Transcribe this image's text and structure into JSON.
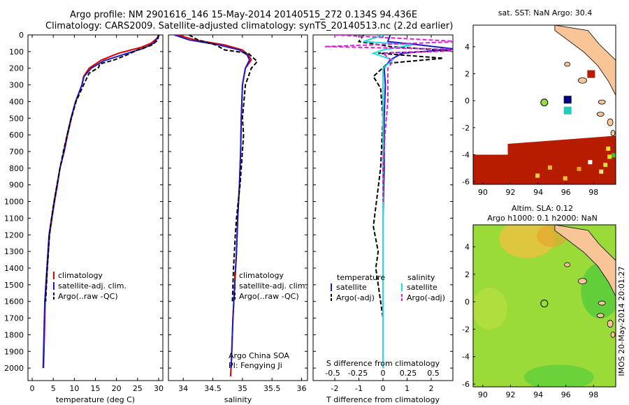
{
  "header": {
    "line1": "Argo profile: NM 2901616_146 15-May-2014 20140515_272 0.134S 94.436E",
    "line2": "Climatology: CARS2009. Satellite-adjusted climatology: synTS_20140513.nc (2.2d earlier)"
  },
  "colors": {
    "climatology": "#e00000",
    "satellite": "#1a1acc",
    "argo": "#000000",
    "salinity_sat": "#22dddd",
    "salinity_argo": "#dd22dd",
    "land": "#f9c596",
    "sst_fill": "#b81c00",
    "sla_fill": "#9adb3a"
  },
  "chart_data": [
    {
      "id": "temperature",
      "type": "line",
      "xlabel": "temperature (deg C)",
      "ylabel": "",
      "xlim": [
        -1,
        31
      ],
      "ylim": [
        2075,
        0
      ],
      "xticks": [
        0,
        5,
        10,
        15,
        20,
        25,
        30
      ],
      "yticks": [
        0,
        100,
        200,
        300,
        400,
        500,
        600,
        700,
        800,
        900,
        1000,
        1100,
        1200,
        1300,
        1400,
        1500,
        1600,
        1700,
        1800,
        1900,
        2000
      ],
      "legend": [
        "climatology",
        "satellite-adj. clim.",
        "Argo(..raw -QC)"
      ],
      "series": [
        {
          "name": "climatology",
          "x": [
            30.0,
            29.6,
            28.2,
            25.8,
            20.5,
            16.5,
            13.5,
            12.2,
            11.8,
            10.3,
            9.3,
            8.4,
            7.6,
            6.6,
            6.0,
            5.3,
            4.7,
            4.1,
            3.6,
            3.1,
            2.9,
            2.7
          ],
          "y": [
            0,
            20,
            50,
            75,
            110,
            150,
            200,
            250,
            300,
            400,
            500,
            600,
            700,
            800,
            900,
            1000,
            1100,
            1200,
            1400,
            1600,
            1800,
            2000
          ]
        },
        {
          "name": "satellite-adj. clim.",
          "x": [
            30.1,
            29.7,
            28.8,
            26.5,
            22.0,
            17.0,
            14.0,
            12.3,
            11.8,
            10.3,
            9.2,
            8.3,
            7.5,
            6.6,
            5.9,
            5.2,
            4.6,
            4.0,
            3.5,
            3.0,
            2.8,
            2.6
          ],
          "y": [
            0,
            20,
            50,
            80,
            115,
            155,
            200,
            250,
            300,
            400,
            500,
            600,
            700,
            800,
            900,
            1000,
            1100,
            1200,
            1400,
            1600,
            1800,
            2000
          ]
        },
        {
          "name": "Argo(..raw -QC)",
          "x": [
            30.0,
            29.8,
            28.5,
            25.0,
            22.5,
            19.5,
            16.0,
            15.8,
            13.5,
            12.2,
            10.4,
            9.3,
            8.3,
            7.4,
            6.6,
            5.9,
            5.2,
            4.6,
            4.1,
            3.6,
            3.2
          ],
          "y": [
            0,
            30,
            60,
            90,
            120,
            150,
            175,
            195,
            230,
            300,
            400,
            500,
            600,
            700,
            800,
            900,
            1000,
            1100,
            1200,
            1400,
            1600
          ]
        }
      ]
    },
    {
      "id": "salinity",
      "type": "line",
      "xlabel": "salinity",
      "ylabel": "",
      "xlim": [
        33.75,
        36.1
      ],
      "ylim": [
        2075,
        0
      ],
      "xticks": [
        34,
        34.5,
        35,
        35.5,
        36
      ],
      "legend": [
        "climatology",
        "satellite-adj. clim.",
        "Argo(..raw -QC)"
      ],
      "annotation": [
        "Argo China SOA",
        "PI: Fengying Ji"
      ],
      "series": [
        {
          "name": "climatology",
          "x": [
            33.9,
            34.2,
            34.7,
            35.0,
            35.1,
            35.15,
            35.05,
            35.0,
            34.98,
            34.97,
            34.95,
            34.92,
            34.9,
            34.87,
            34.84,
            34.82,
            34.8
          ],
          "y": [
            0,
            30,
            60,
            90,
            120,
            150,
            200,
            300,
            500,
            700,
            900,
            1100,
            1300,
            1500,
            1700,
            1900,
            2050
          ]
        },
        {
          "name": "satellite-adj. clim.",
          "x": [
            33.85,
            34.1,
            34.6,
            34.95,
            35.08,
            35.12,
            35.05,
            35.0,
            34.98,
            34.97,
            34.95,
            34.92,
            34.9,
            34.87,
            34.84,
            34.82,
            34.81
          ],
          "y": [
            0,
            30,
            60,
            90,
            120,
            150,
            200,
            300,
            500,
            700,
            900,
            1100,
            1300,
            1500,
            1700,
            1900,
            2000
          ]
        },
        {
          "name": "Argo(..raw -QC)",
          "x": [
            34.1,
            34.25,
            34.55,
            34.7,
            35.1,
            35.25,
            35.15,
            35.05,
            35.0,
            35.02,
            34.98,
            34.96,
            34.93,
            34.9,
            34.88,
            34.85,
            34.83
          ],
          "y": [
            0,
            30,
            60,
            90,
            110,
            160,
            200,
            300,
            500,
            600,
            800,
            900,
            1000,
            1100,
            1200,
            1400,
            1600
          ]
        }
      ]
    },
    {
      "id": "difference",
      "type": "line",
      "xlabel": "T difference from climatology",
      "top_axis_label": "S difference from climatology",
      "xlim": [
        -2.9,
        2.9
      ],
      "ylim": [
        2075,
        0
      ],
      "xticks": [
        -2,
        -1,
        0,
        1,
        2
      ],
      "top_ticks": [
        "-0.5",
        "-0.25",
        "0",
        "0.25",
        "0.5"
      ],
      "legend_left_title": "temperature",
      "legend_right_title": "salinity",
      "legend": [
        "satellite",
        "Argo(-adj)",
        "satellite",
        "Argo(-adj)"
      ],
      "series": [
        {
          "name": "T satellite",
          "x": [
            0.3,
            0.2,
            1.5,
            3.0,
            0.8,
            0.3,
            0.05,
            0.1,
            0.05,
            0.05,
            0.0,
            0.0,
            0.0,
            0.0
          ],
          "y": [
            0,
            40,
            60,
            85,
            110,
            150,
            200,
            300,
            500,
            800,
            1100,
            1400,
            1700,
            2000
          ]
        },
        {
          "name": "T Argo(-adj)",
          "x": [
            -0.8,
            -1.0,
            0.3,
            2.8,
            -0.2,
            2.5,
            0.2,
            -0.4,
            -0.1,
            0.0,
            -0.1,
            -0.4,
            -0.2,
            -0.3,
            -0.1,
            0.0
          ],
          "y": [
            0,
            40,
            70,
            95,
            110,
            140,
            170,
            250,
            320,
            500,
            800,
            1150,
            1300,
            1400,
            1600,
            1700
          ]
        },
        {
          "name": "S satellite",
          "x": [
            0.0,
            -0.2,
            0.3,
            0.0,
            -0.1,
            0.1,
            0.0,
            0.0,
            0.0,
            0.0,
            0.0
          ],
          "y": [
            0,
            40,
            60,
            90,
            110,
            150,
            200,
            500,
            1000,
            1500,
            2000
          ]
        },
        {
          "name": "S Argo(-adj)",
          "x": [
            -0.5,
            0.8,
            -0.6,
            1.0,
            0.0,
            0.1,
            0.05,
            0.05,
            0.02,
            0.0,
            0.0
          ],
          "y": [
            0,
            40,
            70,
            90,
            110,
            160,
            200,
            400,
            600,
            800,
            1000
          ]
        }
      ]
    },
    {
      "id": "sst_map",
      "type": "heatmap",
      "title": "sat. SST: NaN Argo: 30.4",
      "xlim": [
        89.3,
        99.6
      ],
      "ylim": [
        -6.2,
        5.6
      ],
      "xticks": [
        90,
        92,
        94,
        96,
        98
      ],
      "yticks": [
        -6,
        -4,
        -2,
        0,
        2,
        4
      ]
    },
    {
      "id": "sla_map",
      "type": "heatmap",
      "title": "Altim. SLA: 0.12",
      "subtitle": "Argo h1000: 0.1 h2000: NaN",
      "xlim": [
        89.3,
        99.6
      ],
      "ylim": [
        -6.2,
        5.6
      ],
      "xticks": [
        90,
        92,
        94,
        96,
        98
      ],
      "yticks": [
        -6,
        -4,
        -2,
        0,
        2,
        4
      ]
    }
  ],
  "side_label": "IMOS 20-May-2014 20:01:27"
}
